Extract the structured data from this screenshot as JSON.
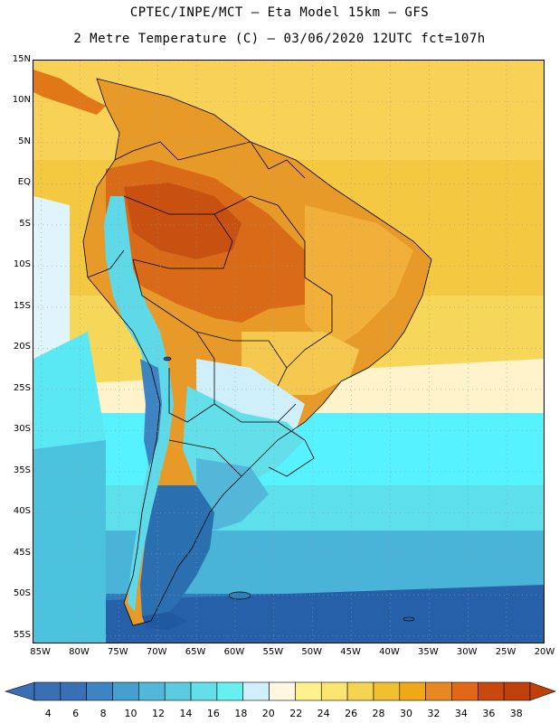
{
  "header": {
    "line1": "CPTEC/INPE/MCT –  Eta Model 15km – GFS",
    "line2": "2 Metre Temperature (C) – 03/06/2020 12UTC fct=107h"
  },
  "map": {
    "lat_labels": [
      "15N",
      "10N",
      "5N",
      "EQ",
      "5S",
      "10S",
      "15S",
      "20S",
      "25S",
      "30S",
      "35S",
      "40S",
      "45S",
      "50S",
      "55S"
    ],
    "lon_labels": [
      "85W",
      "80W",
      "75W",
      "70W",
      "65W",
      "60W",
      "55W",
      "50W",
      "45W",
      "40W",
      "35W",
      "30W",
      "25W",
      "20W"
    ],
    "lat_range": [
      15,
      -56
    ],
    "lon_range": [
      -86,
      -20
    ],
    "grid": "dotted",
    "colors": {
      "ocean_north": "#f5c842",
      "land_hot": "#e07818",
      "land_very_hot": "#c85010",
      "andes": "#5fd8e8",
      "patagonia": "#2a6fb0",
      "ocean_south_deep": "#1f5aa0",
      "ocean_mid": "#4ab4d8",
      "ocean_cyan": "#57f2ff",
      "band_pale": "#fff3cc"
    }
  },
  "colorbar": {
    "labels": [
      "4",
      "6",
      "8",
      "10",
      "12",
      "14",
      "16",
      "18",
      "20",
      "22",
      "24",
      "26",
      "28",
      "30",
      "32",
      "34",
      "36",
      "38"
    ],
    "colors": [
      "#3a6fb5",
      "#3a6fb5",
      "#3d85c2",
      "#45a0cf",
      "#52b7d8",
      "#5ccbe0",
      "#62dfe8",
      "#66f0f0",
      "#cfeffa",
      "#fff7e0",
      "#fff28c",
      "#fbe470",
      "#f5d452",
      "#f0c030",
      "#f0a818",
      "#e88820",
      "#e06818",
      "#c84810",
      "#c0400c"
    ],
    "low_color": "#3a6fb5",
    "high_color": "#c0400c"
  }
}
